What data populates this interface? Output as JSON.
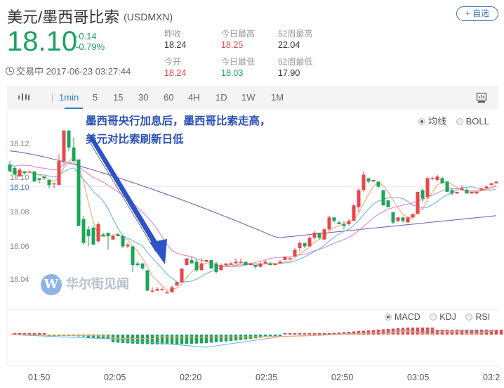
{
  "header": {
    "title": "美元/墨西哥比索",
    "code": "(USDMXN)",
    "price": "18.10",
    "change": "-0.14",
    "change_pct": "-0.79%",
    "status": "交易中 2017-06-23 03:27:44",
    "follow_button": "+ 自选"
  },
  "stats": [
    {
      "label": "昨收",
      "value": "18.24",
      "color": "normal"
    },
    {
      "label": "今日最高",
      "value": "18.25",
      "color": "red"
    },
    {
      "label": "52周最高",
      "value": "22.04",
      "color": "normal"
    },
    {
      "label": "今开",
      "value": "18.24",
      "color": "red"
    },
    {
      "label": "今日最低",
      "value": "18.03",
      "color": "green"
    },
    {
      "label": "52周最低",
      "value": "17.90",
      "color": "normal"
    }
  ],
  "toolbar": {
    "chart_type_icon": "candlestick-icon",
    "periods": [
      "1min",
      "5",
      "15",
      "30",
      "60",
      "4H",
      "1D",
      "1W",
      "1M"
    ],
    "active_period": "1min",
    "fullscreen_icon": "chart-screen-icon"
  },
  "main_indicators": {
    "options": [
      "均线",
      "BOLL"
    ],
    "selected": "均线"
  },
  "sub_indicators": {
    "options": [
      "MACD",
      "KDJ",
      "RSI"
    ],
    "selected": "MACD"
  },
  "annotation": {
    "line1": "墨西哥央行加息后，墨西哥比索走高，",
    "line2": "美元对比索刷新日低"
  },
  "watermark": "华尔街见闻",
  "watermark_logo": "W",
  "colors": {
    "up": "#e8464c",
    "down": "#1aa55a",
    "price_green": "#1aa260",
    "accent_blue": "#2f7bd6",
    "annotation_blue": "#2a4fb8",
    "ma5": "#f5a96b",
    "ma10": "#6fb3e8",
    "ma20": "#e184d6",
    "ma60": "#8e5bb0"
  },
  "chart_data": {
    "type": "candlestick",
    "title": "USDMXN 1min",
    "y_axis": {
      "ticks": [
        "18.12",
        "18.10",
        "18.08",
        "18.06",
        "18.04"
      ],
      "current_price_label": "18.10",
      "range": [
        18.025,
        18.135
      ]
    },
    "x_axis": {
      "ticks": [
        "01:50",
        "02:05",
        "02:20",
        "02:35",
        "02:50",
        "03:05",
        "03:2"
      ]
    },
    "candles": [
      [
        18.108,
        18.11,
        18.104,
        18.104
      ],
      [
        18.106,
        18.107,
        18.102,
        18.102
      ],
      [
        18.101,
        18.106,
        18.101,
        18.105
      ],
      [
        18.104,
        18.104,
        18.102,
        18.103
      ],
      [
        18.104,
        18.104,
        18.103,
        18.104
      ],
      [
        18.104,
        18.104,
        18.098,
        18.098
      ],
      [
        18.1,
        18.1,
        18.097,
        18.099
      ],
      [
        18.101,
        18.101,
        18.099,
        18.1
      ],
      [
        18.099,
        18.099,
        18.094,
        18.096
      ],
      [
        18.097,
        18.097,
        18.094,
        18.097
      ],
      [
        18.096,
        18.114,
        18.096,
        18.11
      ],
      [
        18.11,
        18.128,
        18.108,
        18.128
      ],
      [
        18.128,
        18.128,
        18.116,
        18.118
      ],
      [
        18.118,
        18.124,
        18.11,
        18.11
      ],
      [
        18.111,
        18.111,
        18.072,
        18.072
      ],
      [
        18.076,
        18.078,
        18.061,
        18.062
      ],
      [
        18.07,
        18.072,
        18.06,
        18.066
      ],
      [
        18.071,
        18.072,
        18.061,
        18.061
      ],
      [
        18.063,
        18.074,
        18.062,
        18.073
      ],
      [
        18.067,
        18.068,
        18.066,
        18.066
      ],
      [
        18.068,
        18.068,
        18.058,
        18.066
      ],
      [
        18.064,
        18.067,
        18.064,
        18.066
      ],
      [
        18.067,
        18.068,
        18.066,
        18.066
      ],
      [
        18.066,
        18.067,
        18.059,
        18.06
      ],
      [
        18.06,
        18.062,
        18.059,
        18.061
      ],
      [
        18.06,
        18.06,
        18.045,
        18.049
      ],
      [
        18.05,
        18.051,
        18.048,
        18.049
      ],
      [
        18.05,
        18.05,
        18.046,
        18.047
      ],
      [
        18.046,
        18.046,
        18.034,
        18.034
      ],
      [
        18.034,
        18.036,
        18.033,
        18.034
      ],
      [
        18.034,
        18.036,
        18.034,
        18.035
      ],
      [
        18.035,
        18.036,
        18.034,
        18.035
      ],
      [
        18.033,
        18.034,
        18.033,
        18.033
      ],
      [
        18.033,
        18.037,
        18.033,
        18.036
      ],
      [
        18.037,
        18.039,
        18.037,
        18.039
      ],
      [
        18.039,
        18.047,
        18.039,
        18.047
      ],
      [
        18.049,
        18.053,
        18.049,
        18.053
      ],
      [
        18.052,
        18.054,
        18.05,
        18.05
      ],
      [
        18.051,
        18.053,
        18.045,
        18.046
      ],
      [
        18.046,
        18.053,
        18.046,
        18.05
      ],
      [
        18.051,
        18.052,
        18.051,
        18.052
      ],
      [
        18.052,
        18.052,
        18.047,
        18.047
      ],
      [
        18.05,
        18.051,
        18.044,
        18.045
      ],
      [
        18.046,
        18.05,
        18.046,
        18.049
      ],
      [
        18.049,
        18.05,
        18.049,
        18.05
      ],
      [
        18.05,
        18.051,
        18.049,
        18.05
      ],
      [
        18.05,
        18.053,
        18.05,
        18.051
      ],
      [
        18.051,
        18.053,
        18.05,
        18.051
      ],
      [
        18.051,
        18.051,
        18.049,
        18.049
      ],
      [
        18.049,
        18.05,
        18.049,
        18.05
      ],
      [
        18.049,
        18.049,
        18.047,
        18.048
      ],
      [
        18.048,
        18.051,
        18.048,
        18.05
      ],
      [
        18.05,
        18.052,
        18.05,
        18.051
      ],
      [
        18.05,
        18.051,
        18.049,
        18.049
      ],
      [
        18.049,
        18.05,
        18.049,
        18.05
      ],
      [
        18.05,
        18.052,
        18.05,
        18.051
      ],
      [
        18.052,
        18.054,
        18.052,
        18.054
      ],
      [
        18.053,
        18.054,
        18.052,
        18.053
      ],
      [
        18.054,
        18.059,
        18.054,
        18.058
      ],
      [
        18.059,
        18.063,
        18.057,
        18.062
      ],
      [
        18.062,
        18.062,
        18.059,
        18.06
      ],
      [
        18.06,
        18.066,
        18.06,
        18.065
      ],
      [
        18.065,
        18.069,
        18.064,
        18.068
      ],
      [
        18.068,
        18.068,
        18.064,
        18.065
      ],
      [
        18.064,
        18.071,
        18.064,
        18.07
      ],
      [
        18.07,
        18.078,
        18.069,
        18.077
      ],
      [
        18.077,
        18.077,
        18.074,
        18.075
      ],
      [
        18.074,
        18.075,
        18.073,
        18.073
      ],
      [
        18.073,
        18.075,
        18.07,
        18.072
      ],
      [
        18.073,
        18.076,
        18.072,
        18.075
      ],
      [
        18.075,
        18.085,
        18.075,
        18.084
      ],
      [
        18.083,
        18.094,
        18.08,
        18.093
      ],
      [
        18.093,
        18.104,
        18.092,
        18.102
      ],
      [
        18.1,
        18.1,
        18.097,
        18.098
      ],
      [
        18.098,
        18.099,
        18.098,
        18.099
      ],
      [
        18.098,
        18.098,
        18.094,
        18.095
      ],
      [
        18.093,
        18.093,
        18.084,
        18.084
      ],
      [
        18.087,
        18.087,
        18.083,
        18.083
      ],
      [
        18.08,
        18.08,
        18.073,
        18.074
      ],
      [
        18.075,
        18.077,
        18.074,
        18.077
      ],
      [
        18.077,
        18.077,
        18.074,
        18.075
      ],
      [
        18.074,
        18.077,
        18.074,
        18.077
      ],
      [
        18.077,
        18.079,
        18.077,
        18.079
      ],
      [
        18.079,
        18.092,
        18.079,
        18.092
      ],
      [
        18.093,
        18.094,
        18.086,
        18.088
      ],
      [
        18.089,
        18.101,
        18.088,
        18.1
      ],
      [
        18.1,
        18.101,
        18.099,
        18.1
      ],
      [
        18.099,
        18.102,
        18.098,
        18.101
      ],
      [
        18.1,
        18.101,
        18.097,
        18.097
      ],
      [
        18.098,
        18.098,
        18.092,
        18.092
      ],
      [
        18.093,
        18.094,
        18.09,
        18.091
      ],
      [
        18.091,
        18.092,
        18.091,
        18.092
      ],
      [
        18.093,
        18.096,
        18.093,
        18.094
      ],
      [
        18.093,
        18.094,
        18.091,
        18.091
      ],
      [
        18.091,
        18.092,
        18.091,
        18.092
      ],
      [
        18.091,
        18.092,
        18.091,
        18.092
      ],
      [
        18.093,
        18.094,
        18.093,
        18.094
      ],
      [
        18.094,
        18.096,
        18.094,
        18.095
      ],
      [
        18.096,
        18.097,
        18.096,
        18.097
      ],
      [
        18.097,
        18.098,
        18.097,
        18.098
      ]
    ],
    "moving_averages": {
      "MA5": "orange line following price closely",
      "MA10": "light blue line",
      "MA20": "pink line",
      "MA60": "purple line, from ~18.115 down to ~18.065 near 02:45 then up to ~18.077"
    },
    "macd": {
      "histogram": "green bars (negative) from 01:53 to 02:45, red bars (positive) after 02:48",
      "dif_dea": "blue and orange lines; trough around 02:20"
    },
    "annotation_arrow": {
      "from": "02:00 at 18.12",
      "to": "02:15 at 18.042"
    }
  }
}
